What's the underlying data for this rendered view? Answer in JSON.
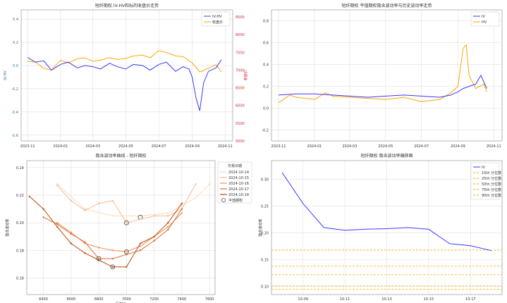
{
  "colors": {
    "iv": "#3a3aff",
    "price": "#ffa500",
    "hv": "#ffa500",
    "right_axis": "#d62728",
    "tick_blue": "#1f77b4",
    "grid": "#d9d9d9",
    "quantile": "#ffa500"
  },
  "chart_data": [
    {
      "id": "c1",
      "type": "line",
      "title": "短纤期权 IV-HV和标的收盘价走势",
      "ylabel": "IV-HV",
      "ylabel_right": "收盘价",
      "legend": [
        "IV-HV",
        "收盘价"
      ],
      "legend_position": "top-right",
      "grid": true,
      "ylim": [
        -0.65,
        0.48
      ],
      "yticks": [
        -0.6,
        -0.4,
        -0.2,
        0.0,
        0.2,
        0.4
      ],
      "ytick_labels": [
        "-0.6",
        "-0.4",
        "-0.2",
        "0.0",
        "0.2",
        "0.4"
      ],
      "ylim_right": [
        5000,
        8700
      ],
      "yticks_right": [
        5000,
        5500,
        6000,
        6500,
        7000,
        7500,
        8000,
        8500
      ],
      "ytick_labels_right": [
        "5000",
        "5500",
        "6000",
        "6500",
        "7000",
        "7500",
        "8000",
        "8500"
      ],
      "xlim": [
        "2023-10-20",
        "2024-11-15"
      ],
      "xticks": [
        "2023-11-01",
        "2024-01-01",
        "2024-03-01",
        "2024-05-01",
        "2024-07-01",
        "2024-09-01",
        "2024-11-01"
      ],
      "xtick_labels": [
        "2023-11",
        "2024-01",
        "2024-03",
        "2024-05",
        "2024-07",
        "2024-09",
        "2024-11"
      ],
      "series": [
        {
          "name": "IV-HV",
          "axis": "left",
          "x": [
            "2023-11-01",
            "2023-11-15",
            "2023-12-01",
            "2023-12-15",
            "2024-01-01",
            "2024-01-15",
            "2024-02-01",
            "2024-02-15",
            "2024-03-01",
            "2024-03-15",
            "2024-04-01",
            "2024-04-15",
            "2024-05-01",
            "2024-05-15",
            "2024-06-01",
            "2024-06-15",
            "2024-07-01",
            "2024-07-15",
            "2024-08-01",
            "2024-08-15",
            "2024-08-26",
            "2024-09-01",
            "2024-09-08",
            "2024-09-15",
            "2024-09-22",
            "2024-10-01",
            "2024-10-15",
            "2024-10-25"
          ],
          "y": [
            0.07,
            0.03,
            0.04,
            -0.04,
            0.01,
            0.03,
            -0.02,
            0.0,
            -0.01,
            -0.03,
            0.02,
            -0.01,
            -0.03,
            0.01,
            0.0,
            -0.04,
            0.01,
            0.03,
            -0.05,
            -0.01,
            -0.03,
            -0.1,
            -0.28,
            -0.39,
            -0.15,
            -0.05,
            -0.02,
            0.05
          ]
        },
        {
          "name": "收盘价",
          "axis": "right",
          "x": [
            "2023-11-01",
            "2023-11-15",
            "2023-12-01",
            "2023-12-15",
            "2024-01-01",
            "2024-01-15",
            "2024-02-01",
            "2024-02-15",
            "2024-03-01",
            "2024-03-15",
            "2024-04-01",
            "2024-04-15",
            "2024-05-01",
            "2024-05-15",
            "2024-06-01",
            "2024-06-15",
            "2024-07-01",
            "2024-07-15",
            "2024-08-01",
            "2024-08-15",
            "2024-09-01",
            "2024-09-15",
            "2024-10-01",
            "2024-10-15",
            "2024-10-25"
          ],
          "y": [
            7250,
            7230,
            7050,
            7000,
            7280,
            7200,
            7320,
            7350,
            7250,
            7280,
            7350,
            7300,
            7330,
            7400,
            7420,
            7350,
            7550,
            7500,
            7400,
            7380,
            7200,
            6950,
            7050,
            7150,
            6950
          ]
        }
      ]
    },
    {
      "id": "c2",
      "type": "line",
      "title": "短纤期权 平值期权隐含波动率与历史波动率走势",
      "legend": [
        "IV",
        "HV"
      ],
      "legend_position": "top-right",
      "grid": true,
      "ylim": [
        -0.3,
        0.9
      ],
      "yticks": [
        -0.2,
        0.0,
        0.2,
        0.4,
        0.6,
        0.8
      ],
      "ytick_labels": [
        "-0.2",
        "0.0",
        "0.2",
        "0.4",
        "0.6",
        "0.8"
      ],
      "xlim": [
        "2023-10-20",
        "2024-11-15"
      ],
      "xticks": [
        "2023-11-01",
        "2024-01-01",
        "2024-03-01",
        "2024-05-01",
        "2024-07-01",
        "2024-09-01",
        "2024-11-01"
      ],
      "xtick_labels": [
        "2023-11",
        "2024-01",
        "2024-03",
        "2024-05",
        "2024-07",
        "2024-09",
        "2024-11"
      ],
      "series": [
        {
          "name": "IV",
          "x": [
            "2023-11-01",
            "2023-12-01",
            "2024-01-01",
            "2024-02-01",
            "2024-03-01",
            "2024-04-01",
            "2024-05-01",
            "2024-06-01",
            "2024-07-01",
            "2024-08-01",
            "2024-08-20",
            "2024-09-01",
            "2024-09-10",
            "2024-09-20",
            "2024-10-01",
            "2024-10-10",
            "2024-10-20"
          ],
          "y": [
            0.12,
            0.13,
            0.13,
            0.12,
            0.11,
            0.1,
            0.11,
            0.12,
            0.11,
            0.1,
            0.12,
            0.15,
            0.18,
            0.2,
            0.22,
            0.3,
            0.18
          ]
        },
        {
          "name": "HV",
          "x": [
            "2023-11-01",
            "2023-11-20",
            "2023-12-01",
            "2024-01-01",
            "2024-01-20",
            "2024-02-01",
            "2024-03-01",
            "2024-04-01",
            "2024-05-01",
            "2024-06-01",
            "2024-07-01",
            "2024-08-01",
            "2024-08-20",
            "2024-09-01",
            "2024-09-10",
            "2024-09-15",
            "2024-09-20",
            "2024-10-01",
            "2024-10-15",
            "2024-10-20"
          ],
          "y": [
            0.05,
            0.12,
            0.1,
            0.08,
            0.14,
            0.11,
            0.1,
            0.09,
            0.08,
            0.1,
            0.06,
            0.08,
            0.14,
            0.2,
            0.55,
            0.58,
            0.3,
            0.18,
            0.22,
            0.15
          ]
        }
      ]
    },
    {
      "id": "c3",
      "type": "line",
      "title": "隐含波动率曲线 - 短纤期权",
      "xlabel": "行权价",
      "ylabel": "隐含波动率",
      "grid": true,
      "legend_title": "交易日期",
      "legend": [
        "2024-10-14",
        "2024-10-15",
        "2024-10-16",
        "2024-10-17",
        "2024-10-18",
        "平值期权"
      ],
      "legend_position": "right",
      "xlim": [
        6280,
        7640
      ],
      "ylim": [
        0.148,
        0.245
      ],
      "xticks": [
        6400,
        6600,
        6800,
        7000,
        7200,
        7400,
        7600
      ],
      "xtick_labels": [
        "6400",
        "6600",
        "6800",
        "7000",
        "7200",
        "7400",
        "7600"
      ],
      "yticks": [
        0.16,
        0.18,
        0.2,
        0.22,
        0.24
      ],
      "ytick_labels": [
        "0.16",
        "0.18",
        "0.20",
        "0.22",
        "0.24"
      ],
      "series": [
        {
          "name": "2024-10-14",
          "x": [
            6500,
            6700,
            6900,
            7100,
            7300,
            7500,
            7600
          ],
          "y": [
            0.228,
            0.21,
            0.205,
            0.205,
            0.207,
            0.218,
            0.228
          ],
          "atm": {
            "x": 7100,
            "y": 0.204
          }
        },
        {
          "name": "2024-10-15",
          "x": [
            6500,
            6600,
            6700,
            6800,
            6900,
            7000,
            7200,
            7300,
            7400,
            7500
          ],
          "y": [
            0.227,
            0.216,
            0.209,
            0.214,
            0.216,
            0.2,
            0.205,
            0.205,
            0.21,
            0.228
          ],
          "atm": {
            "x": 7000,
            "y": 0.2
          }
        },
        {
          "name": "2024-10-16",
          "x": [
            6500,
            6600,
            6700,
            6800,
            6900,
            7000,
            7100,
            7200,
            7300,
            7400
          ],
          "y": [
            0.2,
            0.193,
            0.185,
            0.182,
            0.18,
            0.179,
            0.183,
            0.19,
            0.197,
            0.207
          ],
          "atm": {
            "x": 7000,
            "y": 0.179
          }
        },
        {
          "name": "2024-10-17",
          "x": [
            6400,
            6500,
            6600,
            6700,
            6800,
            6900,
            7000,
            7100,
            7200,
            7300,
            7400
          ],
          "y": [
            0.204,
            0.199,
            0.192,
            0.186,
            0.174,
            0.174,
            0.177,
            0.18,
            0.187,
            0.195,
            0.21
          ],
          "atm": {
            "x": 6800,
            "y": 0.174
          }
        },
        {
          "name": "2024-10-18",
          "x": [
            6300,
            6400,
            6500,
            6600,
            6700,
            6800,
            6900,
            7000,
            7100,
            7200,
            7300,
            7400
          ],
          "y": [
            0.219,
            0.21,
            0.197,
            0.185,
            0.178,
            0.173,
            0.168,
            0.168,
            0.185,
            0.19,
            0.2,
            0.214
          ],
          "atm": {
            "x": 6900,
            "y": 0.168
          }
        }
      ]
    },
    {
      "id": "c4",
      "type": "line",
      "title": "短纤期权 隐含波动率偏移图",
      "ylabel": "隐含波动率",
      "grid": true,
      "legend": [
        "IV",
        "10th 分位数",
        "25th 分位数",
        "50th 分位数",
        "75th 分位数",
        "90th 分位数"
      ],
      "legend_position": "top-right",
      "ylim": [
        0.085,
        0.335
      ],
      "yticks": [
        0.1,
        0.15,
        0.2,
        0.25,
        0.3
      ],
      "ytick_labels": [
        "0.10",
        "0.15",
        "0.20",
        "0.25",
        "0.30"
      ],
      "categories": [
        "10-08",
        "10-09",
        "10-10",
        "10-11",
        "10-12",
        "10-13",
        "10-14",
        "10-15",
        "10-16",
        "10-17",
        "10-18"
      ],
      "xtick_labels": [
        "10-09",
        "10-11",
        "10-13",
        "10-15",
        "10-17"
      ],
      "xtick_index": [
        1,
        3,
        5,
        7,
        9
      ],
      "series": [
        {
          "name": "IV",
          "values": [
            0.313,
            0.255,
            0.21,
            0.205,
            0.207,
            0.208,
            0.21,
            0.207,
            0.18,
            0.176,
            0.167
          ]
        }
      ],
      "quantiles": [
        {
          "name": "10th 分位数",
          "value": 0.095
        },
        {
          "name": "25th 分位数",
          "value": 0.101
        },
        {
          "name": "50th 分位数",
          "value": 0.122
        },
        {
          "name": "75th 分位数",
          "value": 0.138
        },
        {
          "name": "90th 分位数",
          "value": 0.168
        }
      ]
    }
  ]
}
